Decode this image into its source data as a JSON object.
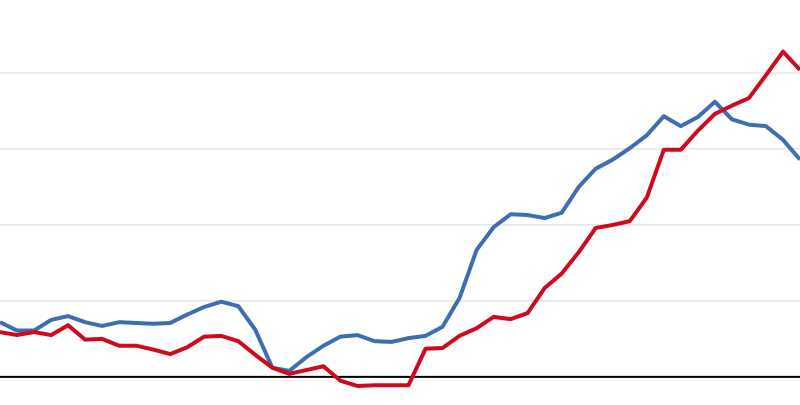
{
  "chart_data": {
    "type": "line",
    "x": [
      0,
      1,
      2,
      3,
      4,
      5,
      6,
      7,
      8,
      9,
      10,
      11,
      12,
      13,
      14,
      15,
      16,
      17,
      18,
      19,
      20,
      21,
      22,
      23,
      24,
      25,
      26,
      27,
      28,
      29,
      30,
      31,
      32,
      33,
      34,
      35,
      36,
      37,
      38,
      39,
      40,
      41,
      42,
      43,
      44,
      45,
      46,
      47
    ],
    "xlim": [
      0,
      47
    ],
    "ylim": [
      -0.37,
      4.96
    ],
    "yticks": [
      0,
      1,
      2,
      3,
      4
    ],
    "grid": true,
    "series": [
      {
        "color": "#3c6eb0",
        "values": [
          0.72,
          0.61,
          0.61,
          0.75,
          0.8,
          0.72,
          0.67,
          0.72,
          0.71,
          0.7,
          0.71,
          0.82,
          0.92,
          0.99,
          0.93,
          0.62,
          0.12,
          0.08,
          0.26,
          0.41,
          0.53,
          0.55,
          0.47,
          0.46,
          0.51,
          0.54,
          0.66,
          1.04,
          1.67,
          1.97,
          2.14,
          2.13,
          2.09,
          2.16,
          2.5,
          2.74,
          2.86,
          3.01,
          3.18,
          3.43,
          3.3,
          3.42,
          3.62,
          3.39,
          3.32,
          3.3,
          3.12,
          2.86
        ]
      },
      {
        "color": "#cf0a1c",
        "values": [
          0.59,
          0.55,
          0.59,
          0.55,
          0.68,
          0.49,
          0.5,
          0.41,
          0.41,
          0.36,
          0.3,
          0.39,
          0.53,
          0.54,
          0.47,
          0.29,
          0.12,
          0.04,
          0.09,
          0.14,
          -0.05,
          -0.12,
          -0.11,
          -0.11,
          -0.11,
          0.37,
          0.38,
          0.54,
          0.64,
          0.79,
          0.76,
          0.84,
          1.17,
          1.36,
          1.64,
          1.96,
          2.0,
          2.05,
          2.36,
          2.99,
          2.99,
          3.24,
          3.46,
          3.57,
          3.67,
          3.97,
          4.28,
          4.04
        ]
      }
    ]
  }
}
